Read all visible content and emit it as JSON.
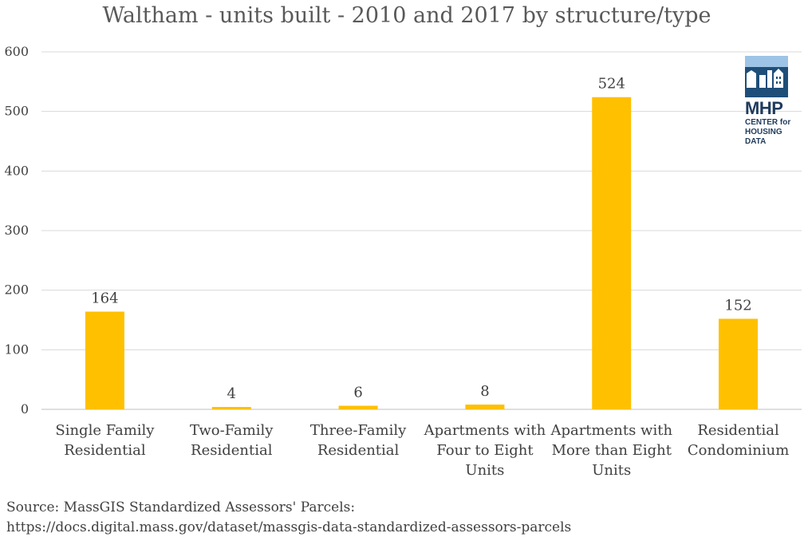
{
  "chart_data": {
    "type": "bar",
    "title": "Waltham - units built - 2010 and 2017 by structure/type",
    "categories": [
      [
        "Single Family",
        "Residential"
      ],
      [
        "Two-Family",
        "Residential"
      ],
      [
        "Three-Family",
        "Residential"
      ],
      [
        "Apartments with",
        "Four to Eight",
        "Units"
      ],
      [
        "Apartments with",
        "More than Eight",
        "Units"
      ],
      [
        "Residential",
        "Condominium"
      ]
    ],
    "values": [
      164,
      4,
      6,
      8,
      524,
      152
    ],
    "data_labels": [
      "164",
      "4",
      "6",
      "8",
      "524",
      "152"
    ],
    "ylim": [
      0,
      600
    ],
    "yticks": [
      0,
      100,
      200,
      300,
      400,
      500,
      600
    ],
    "grid": true,
    "bar_color": "#FFC000",
    "xlabel": "",
    "ylabel": ""
  },
  "source": {
    "line1": "Source: MassGIS Standardized Assessors' Parcels:",
    "line2": "https://docs.digital.mass.gov/dataset/massgis-data-standardized-assessors-parcels"
  },
  "logo": {
    "main": "MHP",
    "sub_line1": "CENTER for",
    "sub_line2": "HOUSING DATA",
    "color": "#1F4E79"
  }
}
